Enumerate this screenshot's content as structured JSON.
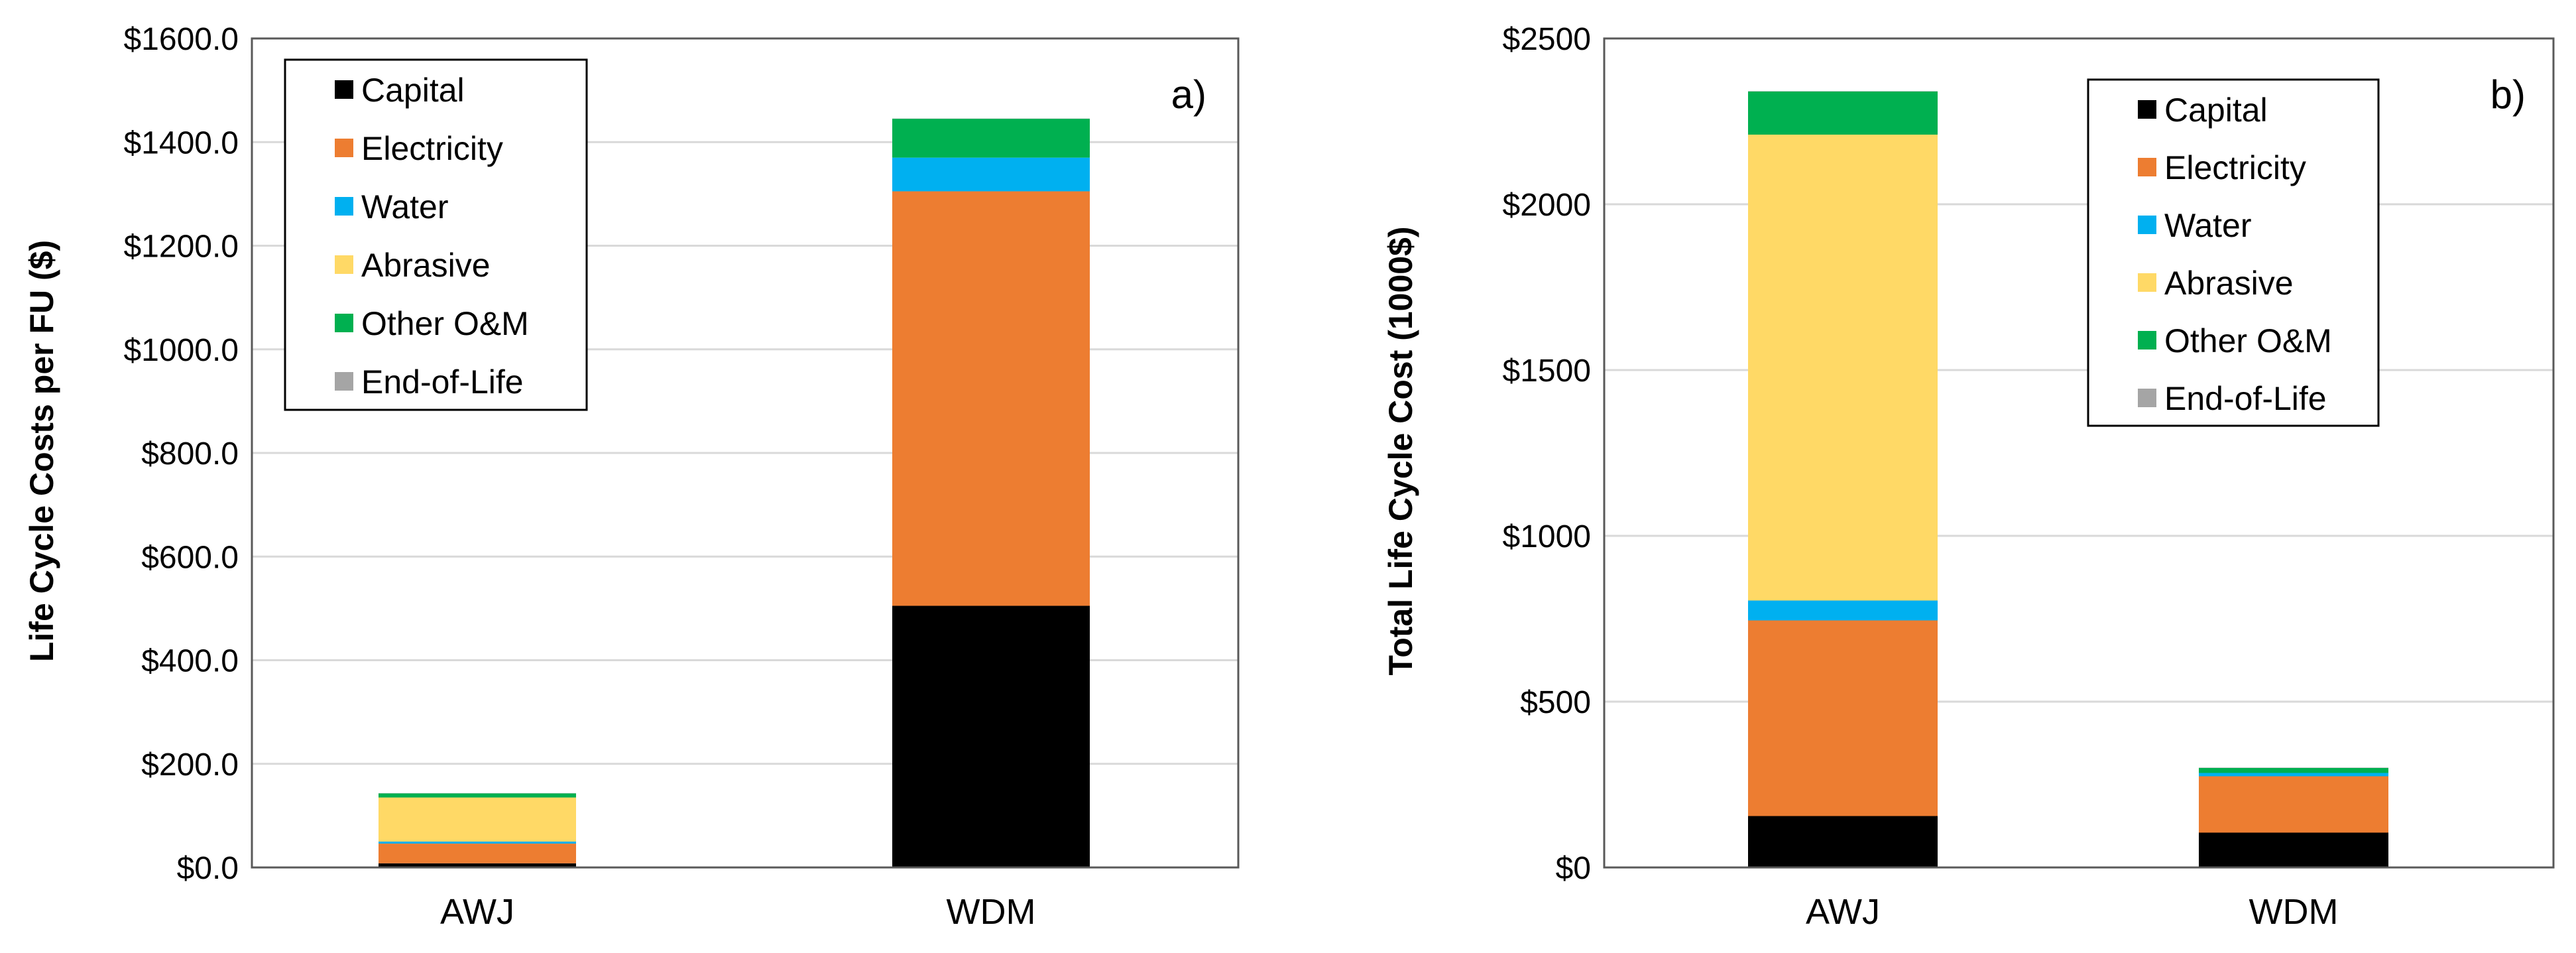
{
  "chart_data": [
    {
      "type": "bar",
      "stacked": true,
      "panel_label": "a)",
      "title": "",
      "xlabel": "",
      "ylabel": "Life Cycle Costs per FU ($)",
      "ylim": [
        0,
        1600
      ],
      "yticks": [
        0,
        200,
        400,
        600,
        800,
        1000,
        1200,
        1400,
        1600
      ],
      "ytick_labels": [
        "$0.0",
        "$200.0",
        "$400.0",
        "$600.0",
        "$800.0",
        "$1000.0",
        "$1200.0",
        "$1400.0",
        "$1600.0"
      ],
      "grid": true,
      "legend_position": "top-left",
      "categories": [
        "AWJ",
        "WDM"
      ],
      "series": [
        {
          "name": "Capital",
          "color": "#000000",
          "values": [
            8,
            505
          ]
        },
        {
          "name": "Electricity",
          "color": "#ED7D31",
          "values": [
            38,
            800
          ]
        },
        {
          "name": "Water",
          "color": "#00B0F0",
          "values": [
            4,
            65
          ]
        },
        {
          "name": "Abrasive",
          "color": "#FFD966",
          "values": [
            85,
            0
          ]
        },
        {
          "name": "Other O&M",
          "color": "#00B050",
          "values": [
            8,
            75
          ]
        },
        {
          "name": "End-of-Life",
          "color": "#A5A5A5",
          "values": [
            0.5,
            0.5
          ]
        }
      ]
    },
    {
      "type": "bar",
      "stacked": true,
      "panel_label": "b)",
      "title": "",
      "xlabel": "",
      "ylabel": "Total Life Cycle Cost (1000$)",
      "ylim": [
        0,
        2500
      ],
      "yticks": [
        0,
        500,
        1000,
        1500,
        2000,
        2500
      ],
      "ytick_labels": [
        "$0",
        "$500",
        "$1000",
        "$1500",
        "$2000",
        "$2500"
      ],
      "grid": true,
      "legend_position": "top-right",
      "categories": [
        "AWJ",
        "WDM"
      ],
      "series": [
        {
          "name": "Capital",
          "color": "#000000",
          "values": [
            155,
            105
          ]
        },
        {
          "name": "Electricity",
          "color": "#ED7D31",
          "values": [
            590,
            170
          ]
        },
        {
          "name": "Water",
          "color": "#00B0F0",
          "values": [
            60,
            10
          ]
        },
        {
          "name": "Abrasive",
          "color": "#FFD966",
          "values": [
            1405,
            0
          ]
        },
        {
          "name": "Other O&M",
          "color": "#00B050",
          "values": [
            130,
            15
          ]
        },
        {
          "name": "End-of-Life",
          "color": "#A5A5A5",
          "values": [
            1,
            1
          ]
        }
      ]
    }
  ]
}
